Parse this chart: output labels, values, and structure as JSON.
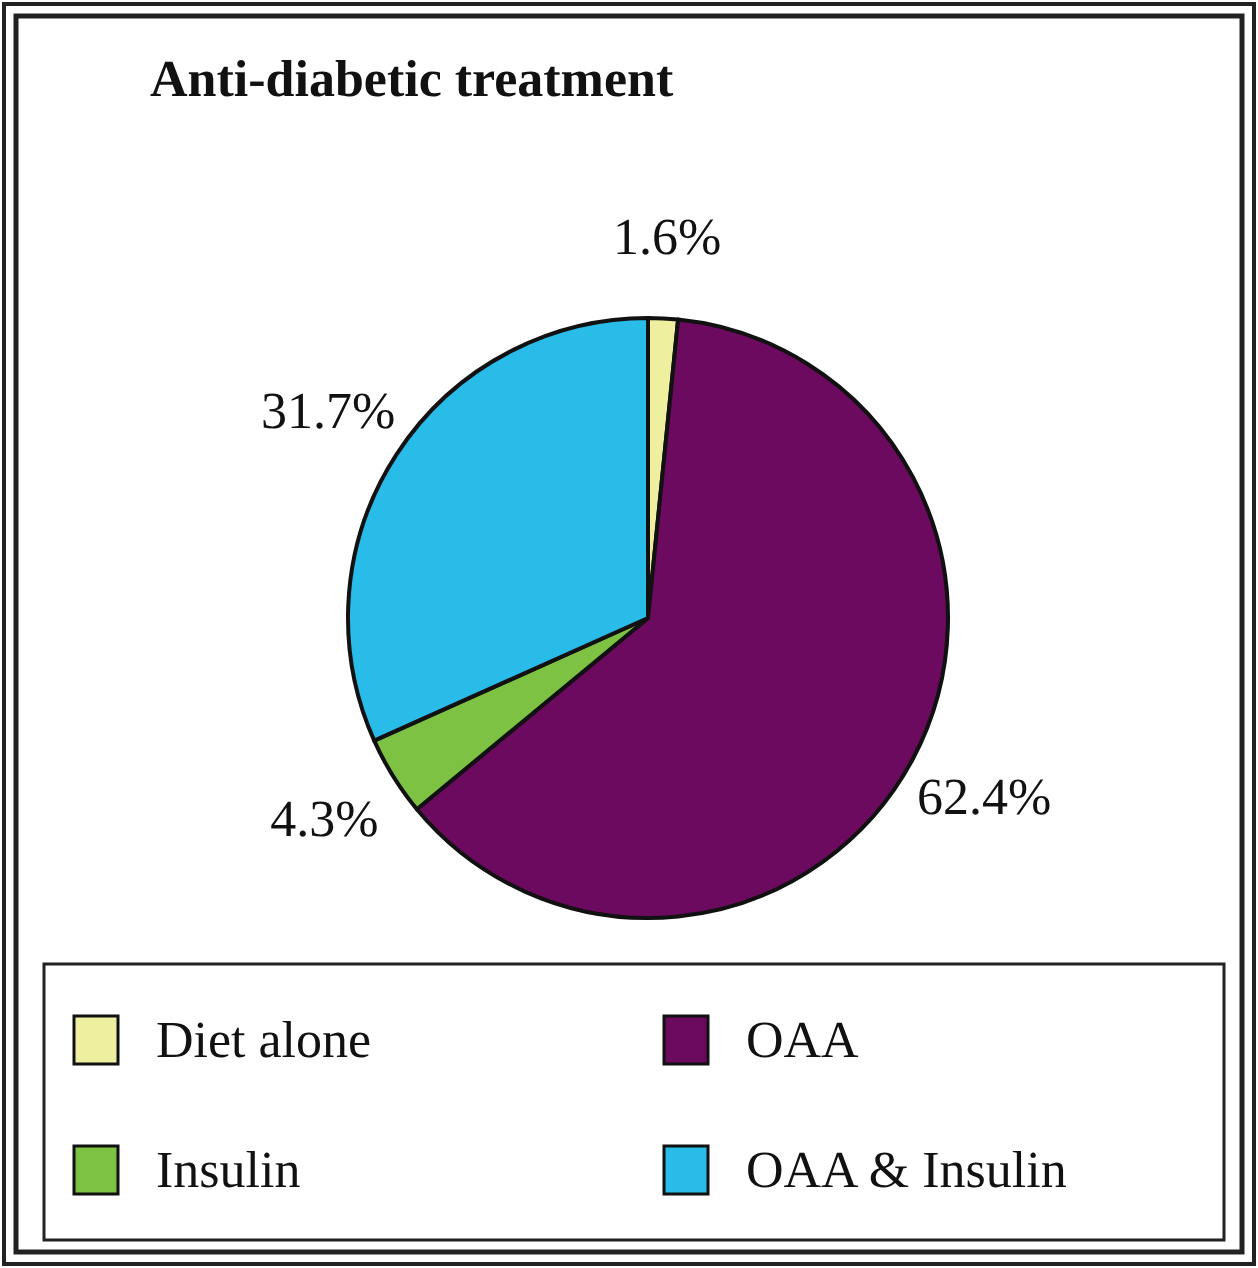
{
  "chart_data": {
    "type": "pie",
    "title": "Anti-diabetic treatment",
    "categories": [
      "Diet alone",
      "OAA",
      "Insulin",
      "OAA & Insulin"
    ],
    "values": [
      1.6,
      62.4,
      4.3,
      31.7
    ],
    "colors": [
      "#eef0a0",
      "#6b0a5e",
      "#7dc242",
      "#29bce8"
    ],
    "value_labels": [
      "1.6%",
      "62.4%",
      "4.3%",
      "31.7%"
    ],
    "legend": "bottom"
  }
}
